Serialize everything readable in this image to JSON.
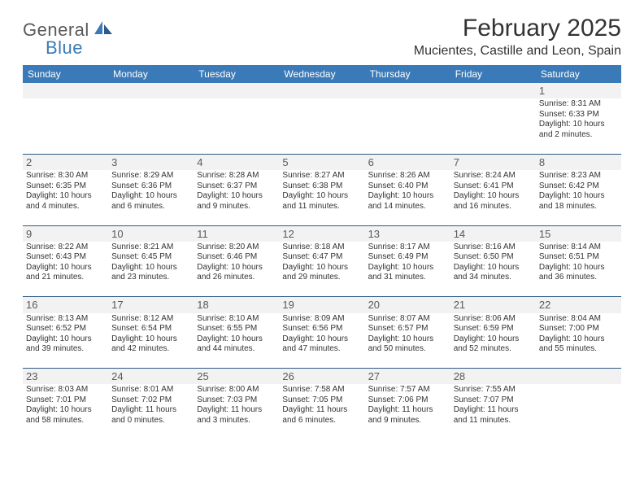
{
  "brand": {
    "general": "General",
    "blue": "Blue"
  },
  "title": "February 2025",
  "location": "Mucientes, Castille and Leon, Spain",
  "colors": {
    "header_bg": "#3a7ab8",
    "header_text": "#ffffff",
    "border": "#2f5a85",
    "numrow_bg": "#f2f2f2",
    "text": "#333333"
  },
  "weekdays": [
    "Sunday",
    "Monday",
    "Tuesday",
    "Wednesday",
    "Thursday",
    "Friday",
    "Saturday"
  ],
  "weeks": [
    [
      null,
      null,
      null,
      null,
      null,
      null,
      {
        "n": "1",
        "sr": "Sunrise: 8:31 AM",
        "ss": "Sunset: 6:33 PM",
        "d1": "Daylight: 10 hours",
        "d2": "and 2 minutes."
      }
    ],
    [
      {
        "n": "2",
        "sr": "Sunrise: 8:30 AM",
        "ss": "Sunset: 6:35 PM",
        "d1": "Daylight: 10 hours",
        "d2": "and 4 minutes."
      },
      {
        "n": "3",
        "sr": "Sunrise: 8:29 AM",
        "ss": "Sunset: 6:36 PM",
        "d1": "Daylight: 10 hours",
        "d2": "and 6 minutes."
      },
      {
        "n": "4",
        "sr": "Sunrise: 8:28 AM",
        "ss": "Sunset: 6:37 PM",
        "d1": "Daylight: 10 hours",
        "d2": "and 9 minutes."
      },
      {
        "n": "5",
        "sr": "Sunrise: 8:27 AM",
        "ss": "Sunset: 6:38 PM",
        "d1": "Daylight: 10 hours",
        "d2": "and 11 minutes."
      },
      {
        "n": "6",
        "sr": "Sunrise: 8:26 AM",
        "ss": "Sunset: 6:40 PM",
        "d1": "Daylight: 10 hours",
        "d2": "and 14 minutes."
      },
      {
        "n": "7",
        "sr": "Sunrise: 8:24 AM",
        "ss": "Sunset: 6:41 PM",
        "d1": "Daylight: 10 hours",
        "d2": "and 16 minutes."
      },
      {
        "n": "8",
        "sr": "Sunrise: 8:23 AM",
        "ss": "Sunset: 6:42 PM",
        "d1": "Daylight: 10 hours",
        "d2": "and 18 minutes."
      }
    ],
    [
      {
        "n": "9",
        "sr": "Sunrise: 8:22 AM",
        "ss": "Sunset: 6:43 PM",
        "d1": "Daylight: 10 hours",
        "d2": "and 21 minutes."
      },
      {
        "n": "10",
        "sr": "Sunrise: 8:21 AM",
        "ss": "Sunset: 6:45 PM",
        "d1": "Daylight: 10 hours",
        "d2": "and 23 minutes."
      },
      {
        "n": "11",
        "sr": "Sunrise: 8:20 AM",
        "ss": "Sunset: 6:46 PM",
        "d1": "Daylight: 10 hours",
        "d2": "and 26 minutes."
      },
      {
        "n": "12",
        "sr": "Sunrise: 8:18 AM",
        "ss": "Sunset: 6:47 PM",
        "d1": "Daylight: 10 hours",
        "d2": "and 29 minutes."
      },
      {
        "n": "13",
        "sr": "Sunrise: 8:17 AM",
        "ss": "Sunset: 6:49 PM",
        "d1": "Daylight: 10 hours",
        "d2": "and 31 minutes."
      },
      {
        "n": "14",
        "sr": "Sunrise: 8:16 AM",
        "ss": "Sunset: 6:50 PM",
        "d1": "Daylight: 10 hours",
        "d2": "and 34 minutes."
      },
      {
        "n": "15",
        "sr": "Sunrise: 8:14 AM",
        "ss": "Sunset: 6:51 PM",
        "d1": "Daylight: 10 hours",
        "d2": "and 36 minutes."
      }
    ],
    [
      {
        "n": "16",
        "sr": "Sunrise: 8:13 AM",
        "ss": "Sunset: 6:52 PM",
        "d1": "Daylight: 10 hours",
        "d2": "and 39 minutes."
      },
      {
        "n": "17",
        "sr": "Sunrise: 8:12 AM",
        "ss": "Sunset: 6:54 PM",
        "d1": "Daylight: 10 hours",
        "d2": "and 42 minutes."
      },
      {
        "n": "18",
        "sr": "Sunrise: 8:10 AM",
        "ss": "Sunset: 6:55 PM",
        "d1": "Daylight: 10 hours",
        "d2": "and 44 minutes."
      },
      {
        "n": "19",
        "sr": "Sunrise: 8:09 AM",
        "ss": "Sunset: 6:56 PM",
        "d1": "Daylight: 10 hours",
        "d2": "and 47 minutes."
      },
      {
        "n": "20",
        "sr": "Sunrise: 8:07 AM",
        "ss": "Sunset: 6:57 PM",
        "d1": "Daylight: 10 hours",
        "d2": "and 50 minutes."
      },
      {
        "n": "21",
        "sr": "Sunrise: 8:06 AM",
        "ss": "Sunset: 6:59 PM",
        "d1": "Daylight: 10 hours",
        "d2": "and 52 minutes."
      },
      {
        "n": "22",
        "sr": "Sunrise: 8:04 AM",
        "ss": "Sunset: 7:00 PM",
        "d1": "Daylight: 10 hours",
        "d2": "and 55 minutes."
      }
    ],
    [
      {
        "n": "23",
        "sr": "Sunrise: 8:03 AM",
        "ss": "Sunset: 7:01 PM",
        "d1": "Daylight: 10 hours",
        "d2": "and 58 minutes."
      },
      {
        "n": "24",
        "sr": "Sunrise: 8:01 AM",
        "ss": "Sunset: 7:02 PM",
        "d1": "Daylight: 11 hours",
        "d2": "and 0 minutes."
      },
      {
        "n": "25",
        "sr": "Sunrise: 8:00 AM",
        "ss": "Sunset: 7:03 PM",
        "d1": "Daylight: 11 hours",
        "d2": "and 3 minutes."
      },
      {
        "n": "26",
        "sr": "Sunrise: 7:58 AM",
        "ss": "Sunset: 7:05 PM",
        "d1": "Daylight: 11 hours",
        "d2": "and 6 minutes."
      },
      {
        "n": "27",
        "sr": "Sunrise: 7:57 AM",
        "ss": "Sunset: 7:06 PM",
        "d1": "Daylight: 11 hours",
        "d2": "and 9 minutes."
      },
      {
        "n": "28",
        "sr": "Sunrise: 7:55 AM",
        "ss": "Sunset: 7:07 PM",
        "d1": "Daylight: 11 hours",
        "d2": "and 11 minutes."
      },
      null
    ]
  ]
}
